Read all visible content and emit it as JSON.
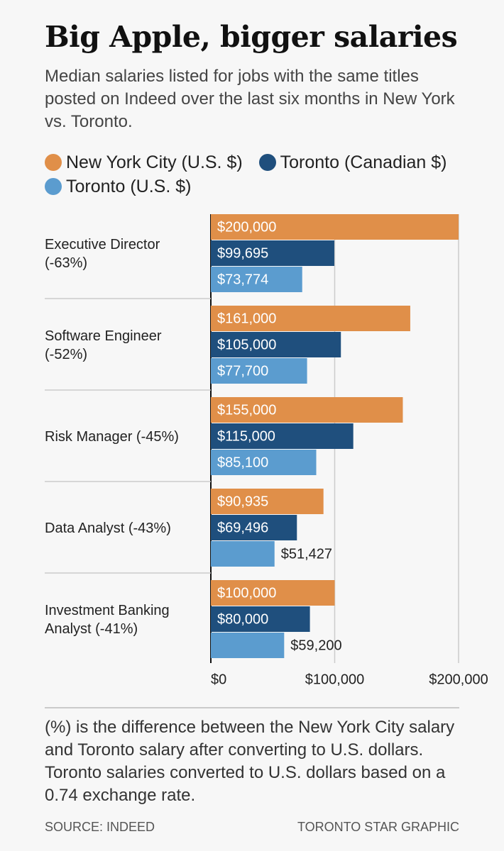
{
  "chart_data": {
    "type": "bar",
    "orientation": "horizontal",
    "title": "Big Apple, bigger salaries",
    "subtitle": "Median salaries listed for jobs with the same titles posted on Indeed over the last six months in New York vs. Toronto.",
    "categories": [
      "Executive Director (-63%)",
      "Software Engineer (-52%)",
      "Risk Manager (-45%)",
      "Data Analyst (-43%)",
      "Investment Banking Analyst (-41%)"
    ],
    "series": [
      {
        "name": "New York City (U.S. $)",
        "color": "#e08f49",
        "values": [
          200000,
          161000,
          155000,
          90935,
          100000
        ],
        "value_labels": [
          "$200,000",
          "$161,000",
          "$155,000",
          "$90,935",
          "$100,000"
        ]
      },
      {
        "name": "Toronto (Canadian $)",
        "color": "#1f4f7d",
        "values": [
          99695,
          105000,
          115000,
          69496,
          80000
        ],
        "value_labels": [
          "$99,695",
          "$105,000",
          "$115,000",
          "$69,496",
          "$80,000"
        ]
      },
      {
        "name": "Toronto (U.S. $)",
        "color": "#5b9ccf",
        "values": [
          73774,
          77700,
          85100,
          51427,
          59200
        ],
        "value_labels": [
          "$73,774",
          "$77,700",
          "$85,100",
          "$51,427",
          "$59,200"
        ]
      }
    ],
    "xlim": [
      0,
      200000
    ],
    "xticks": [
      {
        "value": 0,
        "label": "$0"
      },
      {
        "value": 100000,
        "label": "$100,000"
      },
      {
        "value": 200000,
        "label": "$200,000"
      }
    ],
    "grid": true,
    "note": "(%) is the difference between the New York City salary and Toronto salary after converting to U.S. dollars. Toronto salaries converted to U.S. dollars based on a 0.74 exchange rate.",
    "source": "SOURCE: INDEED",
    "credit": "TORONTO STAR GRAPHIC"
  }
}
